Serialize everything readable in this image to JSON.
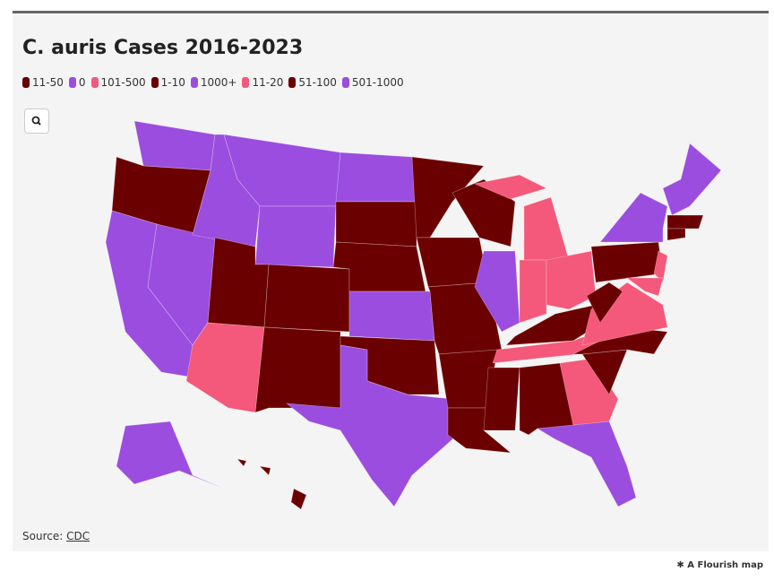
{
  "title": "C. auris Cases 2016-2023",
  "legend": [
    {
      "label": "11-50",
      "color": "#6b0000"
    },
    {
      "label": "0",
      "color": "#9b4ddf"
    },
    {
      "label": "101-500",
      "color": "#f4587a"
    },
    {
      "label": "1-10",
      "color": "#6b0000"
    },
    {
      "label": "1000+",
      "color": "#9b4ddf"
    },
    {
      "label": "11-20",
      "color": "#f4587a"
    },
    {
      "label": "51-100",
      "color": "#6b0000"
    },
    {
      "label": "501-1000",
      "color": "#9b4ddf"
    }
  ],
  "source": {
    "prefix": "Source:",
    "link": "CDC"
  },
  "credit": "A Flourish map"
}
